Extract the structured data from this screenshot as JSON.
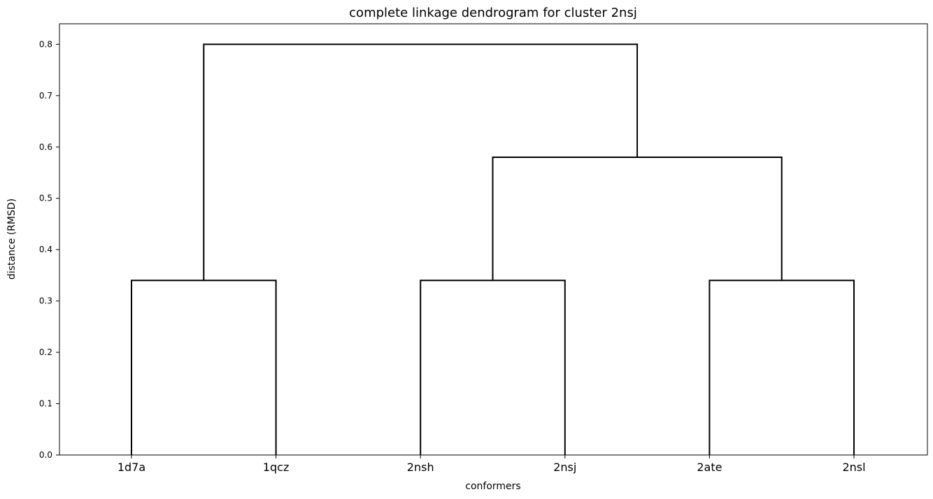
{
  "chart_data": {
    "type": "dendrogram",
    "title": "complete linkage dendrogram for cluster 2nsj",
    "xlabel": "conformers",
    "ylabel": "distance (RMSD)",
    "leaves": [
      "1d7a",
      "1qcz",
      "2nsh",
      "2nsj",
      "2ate",
      "2nsl"
    ],
    "ylim": [
      0.0,
      0.84
    ],
    "yticks": [
      0.0,
      0.1,
      0.2,
      0.3,
      0.4,
      0.5,
      0.6,
      0.7,
      0.8
    ],
    "ytick_labels": [
      "0.0",
      "0.1",
      "0.2",
      "0.3",
      "0.4",
      "0.5",
      "0.6",
      "0.7",
      "0.8"
    ],
    "merges": [
      {
        "left": "1d7a",
        "right": "1qcz",
        "height": 0.34
      },
      {
        "left": "2nsh",
        "right": "2nsj",
        "height": 0.34
      },
      {
        "left": "2ate",
        "right": "2nsl",
        "height": 0.34
      },
      {
        "left": "(2nsh, 2nsj)",
        "right": "(2ate, 2nsl)",
        "height": 0.58
      },
      {
        "left": "(1d7a, 1qcz)",
        "right": "((2nsh, 2nsj), (2ate, 2nsl))",
        "height": 0.8
      }
    ],
    "link_color": "#000000",
    "grid": false
  }
}
